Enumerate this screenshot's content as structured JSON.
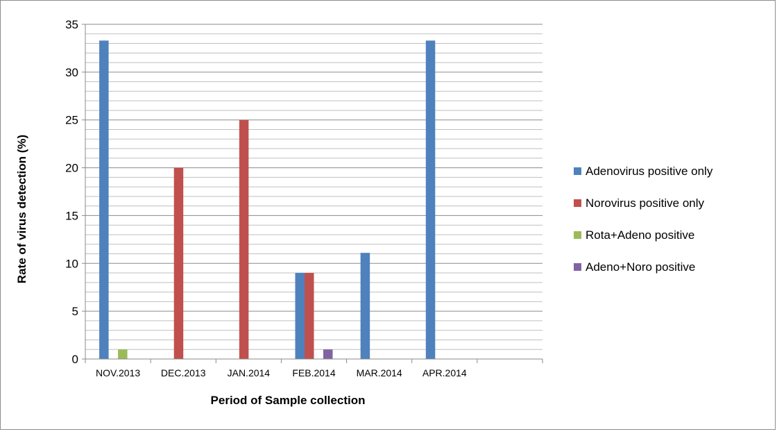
{
  "chart_data": {
    "type": "bar",
    "title": "",
    "xlabel": "Period of Sample collection",
    "ylabel": "Rate of virus detection (%)",
    "ylim": [
      0,
      35
    ],
    "y_major_step": 5,
    "y_minor_step": 1,
    "y_ticks": [
      "0",
      "5",
      "10",
      "15",
      "20",
      "25",
      "30",
      "35"
    ],
    "grid": true,
    "legend_position": "right",
    "categories": [
      "NOV.2013",
      "DEC.2013",
      "JAN.2014",
      "FEB.2014",
      "MAR.2014",
      "APR.2014",
      ""
    ],
    "series": [
      {
        "name": "Adenovirus positive only",
        "color": "#4F81BD",
        "values": [
          33.3,
          0,
          0,
          9,
          11.1,
          33.3,
          0
        ]
      },
      {
        "name": "Norovirus positive only",
        "color": "#C0504D",
        "values": [
          0,
          20,
          25,
          9,
          0,
          0,
          0
        ]
      },
      {
        "name": "Rota+Adeno positive",
        "color": "#9BBB59",
        "values": [
          1,
          0,
          0,
          0,
          0,
          0,
          0
        ]
      },
      {
        "name": "Adeno+Noro positive",
        "color": "#8064A2",
        "values": [
          0,
          0,
          0,
          1,
          0,
          0,
          0
        ]
      }
    ]
  }
}
